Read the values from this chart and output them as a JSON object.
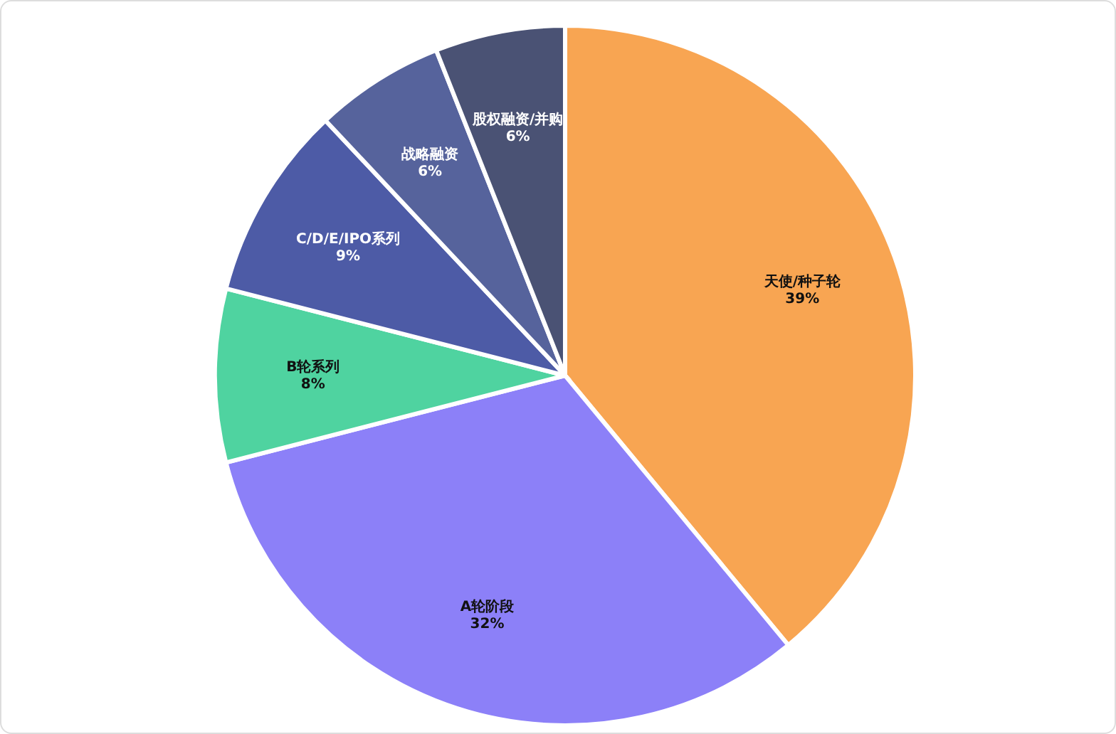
{
  "chart_data": {
    "type": "pie",
    "categories": [
      "天使/种子轮",
      "A轮阶段",
      "B轮系列",
      "C/D/E/IPO系列",
      "战略融资",
      "股权融资/并购"
    ],
    "values": [
      39,
      32,
      8,
      9,
      6,
      6
    ],
    "colors": [
      "#f8a552",
      "#8c80f8",
      "#4fd3a0",
      "#4d5ba6",
      "#56639c",
      "#4a5274"
    ],
    "value_labels": [
      "39%",
      "32%",
      "8%",
      "9%",
      "6%",
      "6%"
    ],
    "legend": false
  }
}
